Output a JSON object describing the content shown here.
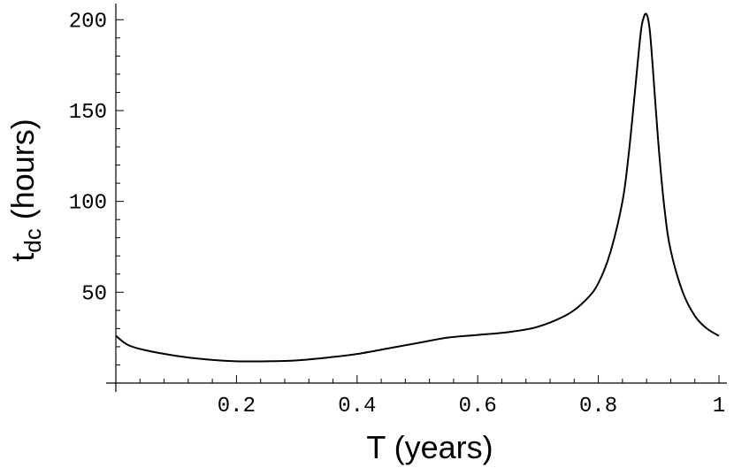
{
  "chart_data": {
    "type": "line",
    "title": "",
    "xlabel": "T (years)",
    "ylabel_main": "t",
    "ylabel_sub": "dc",
    "ylabel_rest": " (hours)",
    "xlim": [
      0,
      1
    ],
    "ylim": [
      0,
      205
    ],
    "grid": false,
    "legend": "none",
    "x_ticks": [
      0.2,
      0.4,
      0.6,
      0.8,
      1.0
    ],
    "x_tick_labels": [
      "0.2",
      "0.4",
      "0.6",
      "0.8",
      "1"
    ],
    "y_ticks": [
      50,
      100,
      150,
      200
    ],
    "y_tick_labels": [
      "50",
      "100",
      "150",
      "200"
    ],
    "series": [
      {
        "x": [
          0.0,
          0.02,
          0.05,
          0.1,
          0.15,
          0.2,
          0.25,
          0.3,
          0.35,
          0.4,
          0.45,
          0.5,
          0.55,
          0.6,
          0.65,
          0.7,
          0.75,
          0.78,
          0.8,
          0.82,
          0.84,
          0.85,
          0.86,
          0.87,
          0.875,
          0.88,
          0.885,
          0.89,
          0.9,
          0.91,
          0.92,
          0.94,
          0.96,
          0.98,
          1.0
        ],
        "y": [
          26,
          21,
          18,
          15,
          13,
          12,
          12,
          12.5,
          14,
          16,
          19,
          22,
          25,
          26.5,
          28,
          31,
          38,
          46,
          55,
          72,
          100,
          125,
          158,
          192,
          201,
          203,
          195,
          175,
          130,
          95,
          73,
          50,
          37,
          30,
          26
        ]
      }
    ]
  }
}
